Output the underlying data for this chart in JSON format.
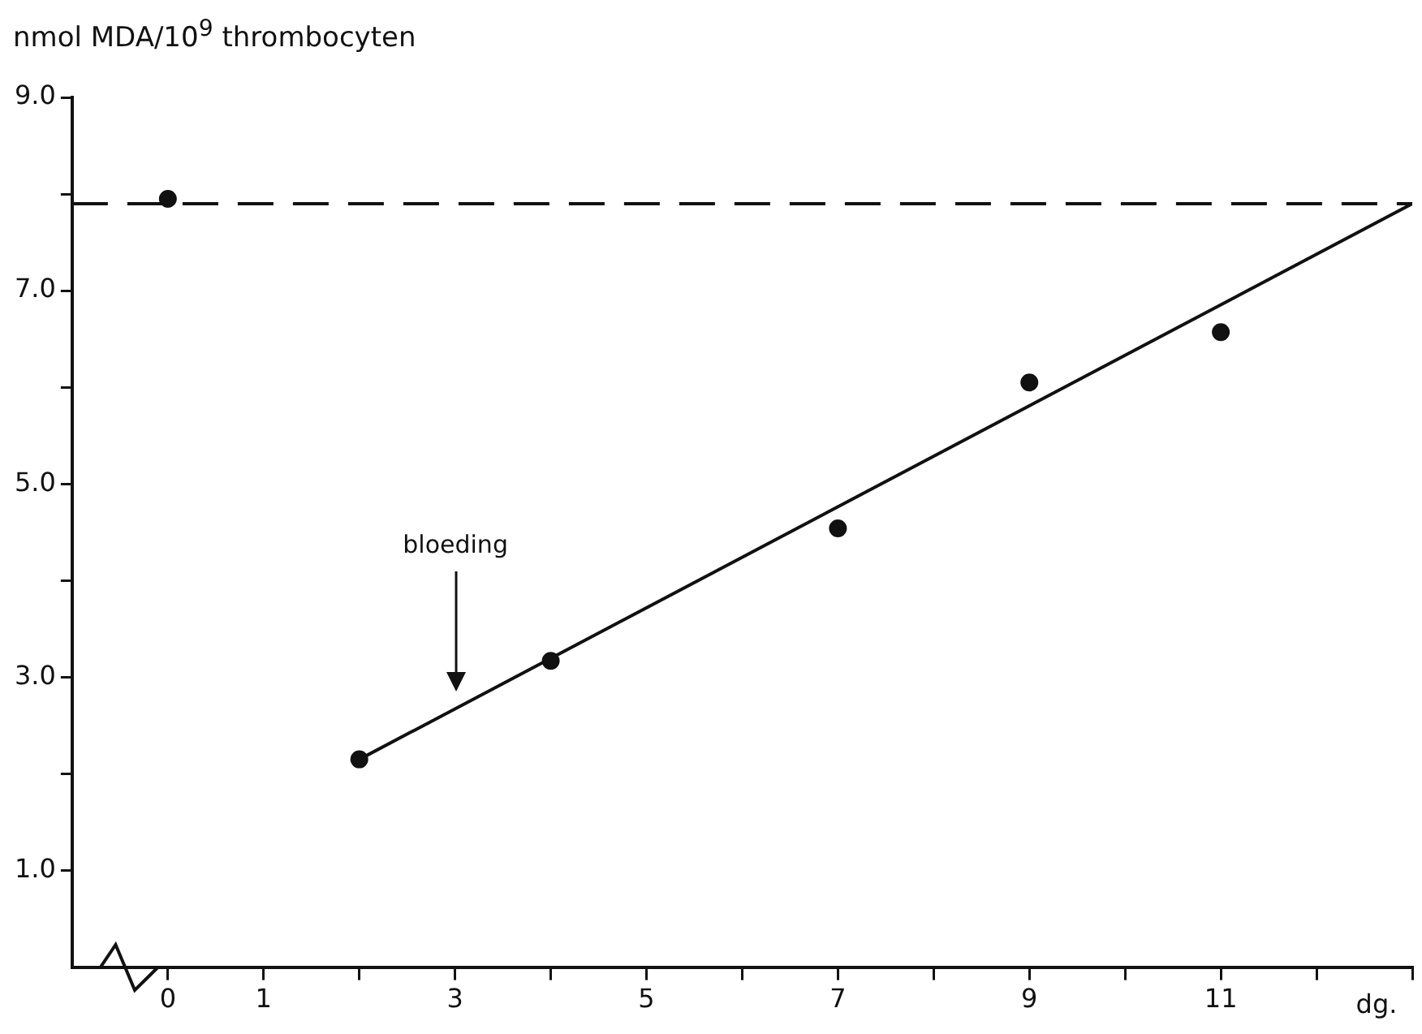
{
  "chart_data": {
    "type": "scatter",
    "ylabel": "nmol MDA/10$^{9}$ thrombocyten",
    "xlabel": "dg.",
    "xlim": [
      -1,
      13
    ],
    "ylim": [
      0,
      9
    ],
    "xticks": [
      0,
      1,
      {
        "value": 2,
        "label": null
      },
      3,
      {
        "value": 4,
        "label": null
      },
      5,
      {
        "value": 6,
        "label": null
      },
      7,
      {
        "value": 8,
        "label": null
      },
      9,
      {
        "value": 10,
        "label": null
      },
      11,
      {
        "value": 12,
        "label": null
      },
      {
        "value": 13,
        "label": null
      }
    ],
    "yticks": [
      {
        "value": 1,
        "label": "1.0"
      },
      {
        "value": 2,
        "label": null
      },
      {
        "value": 3,
        "label": "3.0"
      },
      {
        "value": 4,
        "label": null
      },
      {
        "value": 5,
        "label": "5.0"
      },
      {
        "value": 6,
        "label": null
      },
      {
        "value": 7,
        "label": "7.0"
      },
      {
        "value": 8,
        "label": null
      },
      {
        "value": 9,
        "label": "9.0"
      }
    ],
    "series": [
      {
        "color": "#111111",
        "marker": "circle",
        "x": [
          0,
          2,
          4,
          7,
          9,
          11
        ],
        "values": [
          7.95,
          2.15,
          3.17,
          4.54,
          6.05,
          6.57
        ]
      },
      {
        "type": "line",
        "color": "#111111",
        "marker": "none",
        "line_style": "solid",
        "x": [
          2,
          13
        ],
        "values": [
          2.15,
          7.9
        ]
      }
    ],
    "ref_lines": [
      {
        "axis": "y",
        "value": 7.9,
        "color": "#111111",
        "line_style": "dashed"
      }
    ],
    "annotations": [
      "bloeding"
    ],
    "grid": false,
    "legend": false
  }
}
